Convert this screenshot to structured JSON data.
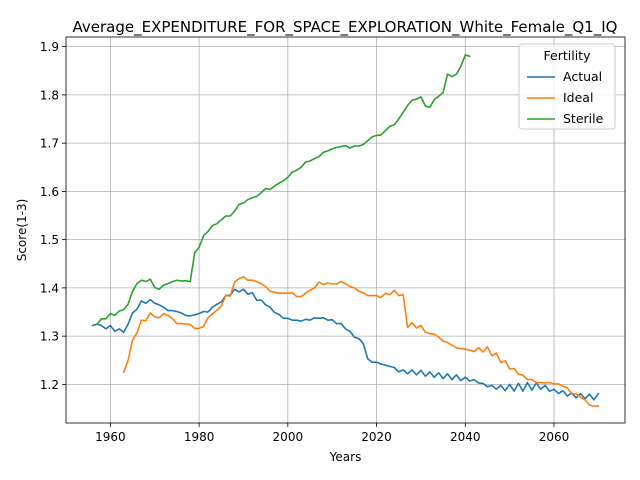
{
  "chart_data": {
    "type": "line",
    "title": "Average_EXPENDITURE_FOR_SPACE_EXPLORATION_White_Female_Q1_IQ",
    "xlabel": "Years",
    "ylabel": "Score(1-3)",
    "xlim": [
      1950,
      2076
    ],
    "ylim": [
      1.12,
      1.92
    ],
    "xticks": [
      1960,
      1980,
      2000,
      2020,
      2040,
      2060
    ],
    "yticks": [
      1.2,
      1.3,
      1.4,
      1.5,
      1.6,
      1.7,
      1.8,
      1.9
    ],
    "xtick_labels": [
      "1960",
      "1980",
      "2000",
      "2020",
      "2040",
      "2060"
    ],
    "ytick_labels": [
      "1.2",
      "1.3",
      "1.4",
      "1.5",
      "1.6",
      "1.7",
      "1.8",
      "1.9"
    ],
    "grid": true,
    "legend": {
      "title": "Fertility",
      "position": "top-right"
    },
    "series": [
      {
        "name": "Actual",
        "color": "#1f77b4",
        "x": [
          1956,
          1957,
          1958,
          1959,
          1960,
          1961,
          1962,
          1963,
          1964,
          1965,
          1966,
          1967,
          1968,
          1969,
          1970,
          1971,
          1972,
          1973,
          1974,
          1975,
          1976,
          1977,
          1978,
          1979,
          1980,
          1981,
          1982,
          1983,
          1984,
          1985,
          1986,
          1987,
          1988,
          1989,
          1990,
          1991,
          1992,
          1993,
          1994,
          1995,
          1996,
          1997,
          1998,
          1999,
          2000,
          2001,
          2002,
          2003,
          2004,
          2005,
          2006,
          2007,
          2008,
          2009,
          2010,
          2011,
          2012,
          2013,
          2014,
          2015,
          2016,
          2017,
          2018,
          2019,
          2020,
          2021,
          2022,
          2023,
          2024,
          2025,
          2026,
          2027,
          2028,
          2029,
          2030,
          2031,
          2032,
          2033,
          2034,
          2035,
          2036,
          2037,
          2038,
          2039,
          2040,
          2041,
          2042,
          2043,
          2044,
          2045,
          2046,
          2047,
          2048,
          2049,
          2050,
          2051,
          2052,
          2053,
          2054,
          2055,
          2056,
          2057,
          2058,
          2059,
          2060,
          2061,
          2062,
          2063,
          2064,
          2065,
          2066,
          2067,
          2068,
          2069,
          2070
        ],
        "y": [
          1.322,
          1.325,
          1.322,
          1.315,
          1.322,
          1.31,
          1.315,
          1.308,
          1.325,
          1.348,
          1.356,
          1.373,
          1.368,
          1.376,
          1.368,
          1.365,
          1.36,
          1.353,
          1.353,
          1.351,
          1.348,
          1.343,
          1.342,
          1.344,
          1.347,
          1.351,
          1.35,
          1.36,
          1.366,
          1.371,
          1.384,
          1.385,
          1.397,
          1.392,
          1.397,
          1.387,
          1.39,
          1.374,
          1.375,
          1.365,
          1.36,
          1.349,
          1.345,
          1.337,
          1.337,
          1.333,
          1.333,
          1.331,
          1.335,
          1.333,
          1.338,
          1.337,
          1.338,
          1.333,
          1.334,
          1.326,
          1.326,
          1.315,
          1.31,
          1.298,
          1.295,
          1.285,
          1.253,
          1.246,
          1.246,
          1.242,
          1.24,
          1.237,
          1.235,
          1.226,
          1.23,
          1.222,
          1.23,
          1.22,
          1.229,
          1.217,
          1.226,
          1.215,
          1.224,
          1.212,
          1.222,
          1.21,
          1.22,
          1.208,
          1.215,
          1.207,
          1.21,
          1.203,
          1.202,
          1.195,
          1.198,
          1.19,
          1.198,
          1.187,
          1.2,
          1.186,
          1.202,
          1.186,
          1.204,
          1.188,
          1.203,
          1.19,
          1.198,
          1.186,
          1.19,
          1.181,
          1.187,
          1.176,
          1.182,
          1.172,
          1.181,
          1.17,
          1.18,
          1.168,
          1.181
        ]
      },
      {
        "name": "Ideal",
        "color": "#ff7f0e",
        "x": [
          1963,
          1964,
          1965,
          1966,
          1967,
          1968,
          1969,
          1970,
          1971,
          1972,
          1973,
          1974,
          1975,
          1976,
          1977,
          1978,
          1979,
          1980,
          1981,
          1982,
          1983,
          1984,
          1985,
          1986,
          1987,
          1988,
          1989,
          1990,
          1991,
          1992,
          1993,
          1994,
          1995,
          1996,
          1997,
          1998,
          1999,
          2000,
          2001,
          2002,
          2003,
          2004,
          2005,
          2006,
          2007,
          2008,
          2009,
          2010,
          2011,
          2012,
          2013,
          2014,
          2015,
          2016,
          2017,
          2018,
          2019,
          2020,
          2021,
          2022,
          2023,
          2024,
          2025,
          2026,
          2027,
          2028,
          2029,
          2030,
          2031,
          2032,
          2033,
          2034,
          2035,
          2036,
          2037,
          2038,
          2039,
          2040,
          2041,
          2042,
          2043,
          2044,
          2045,
          2046,
          2047,
          2048,
          2049,
          2050,
          2051,
          2052,
          2053,
          2054,
          2055,
          2056,
          2057,
          2058,
          2059,
          2060,
          2061,
          2062,
          2063,
          2064,
          2065,
          2066,
          2067,
          2068,
          2069,
          2070
        ],
        "y": [
          1.225,
          1.25,
          1.292,
          1.307,
          1.333,
          1.332,
          1.348,
          1.34,
          1.338,
          1.347,
          1.343,
          1.336,
          1.326,
          1.326,
          1.325,
          1.324,
          1.316,
          1.316,
          1.32,
          1.338,
          1.346,
          1.354,
          1.362,
          1.384,
          1.383,
          1.412,
          1.419,
          1.423,
          1.416,
          1.416,
          1.413,
          1.409,
          1.403,
          1.393,
          1.391,
          1.389,
          1.389,
          1.389,
          1.39,
          1.382,
          1.382,
          1.389,
          1.395,
          1.4,
          1.412,
          1.407,
          1.41,
          1.408,
          1.408,
          1.413,
          1.409,
          1.403,
          1.4,
          1.393,
          1.39,
          1.384,
          1.384,
          1.384,
          1.38,
          1.389,
          1.386,
          1.395,
          1.384,
          1.386,
          1.318,
          1.328,
          1.317,
          1.322,
          1.308,
          1.305,
          1.304,
          1.298,
          1.29,
          1.287,
          1.281,
          1.276,
          1.274,
          1.273,
          1.271,
          1.268,
          1.276,
          1.267,
          1.278,
          1.259,
          1.265,
          1.245,
          1.249,
          1.232,
          1.233,
          1.221,
          1.219,
          1.21,
          1.21,
          1.204,
          1.204,
          1.203,
          1.204,
          1.201,
          1.201,
          1.196,
          1.193,
          1.18,
          1.181,
          1.173,
          1.168,
          1.157,
          1.155,
          1.155
        ]
      },
      {
        "name": "Sterile",
        "color": "#2ca02c",
        "x": [
          1957,
          1958,
          1959,
          1960,
          1961,
          1962,
          1963,
          1964,
          1965,
          1966,
          1967,
          1968,
          1969,
          1970,
          1971,
          1972,
          1973,
          1974,
          1975,
          1976,
          1977,
          1978,
          1979,
          1980,
          1981,
          1982,
          1983,
          1984,
          1985,
          1986,
          1987,
          1988,
          1989,
          1990,
          1991,
          1992,
          1993,
          1994,
          1995,
          1996,
          1997,
          1998,
          1999,
          2000,
          2001,
          2002,
          2003,
          2004,
          2005,
          2006,
          2007,
          2008,
          2009,
          2010,
          2011,
          2012,
          2013,
          2014,
          2015,
          2016,
          2017,
          2018,
          2019,
          2020,
          2021,
          2022,
          2023,
          2024,
          2025,
          2026,
          2027,
          2028,
          2029,
          2030,
          2031,
          2032,
          2033,
          2034,
          2035,
          2036,
          2037,
          2038,
          2039,
          2040,
          2041
        ],
        "y": [
          1.325,
          1.336,
          1.336,
          1.347,
          1.343,
          1.352,
          1.355,
          1.366,
          1.393,
          1.409,
          1.416,
          1.413,
          1.418,
          1.401,
          1.397,
          1.406,
          1.409,
          1.413,
          1.416,
          1.414,
          1.415,
          1.413,
          1.473,
          1.484,
          1.508,
          1.517,
          1.529,
          1.533,
          1.541,
          1.549,
          1.549,
          1.559,
          1.573,
          1.576,
          1.583,
          1.587,
          1.59,
          1.597,
          1.606,
          1.604,
          1.611,
          1.617,
          1.622,
          1.629,
          1.64,
          1.644,
          1.65,
          1.661,
          1.663,
          1.668,
          1.672,
          1.681,
          1.684,
          1.688,
          1.691,
          1.693,
          1.695,
          1.69,
          1.694,
          1.694,
          1.697,
          1.705,
          1.713,
          1.716,
          1.717,
          1.726,
          1.735,
          1.738,
          1.75,
          1.764,
          1.778,
          1.789,
          1.791,
          1.796,
          1.777,
          1.774,
          1.79,
          1.797,
          1.805,
          1.843,
          1.838,
          1.843,
          1.859,
          1.883,
          1.88
        ]
      }
    ]
  }
}
